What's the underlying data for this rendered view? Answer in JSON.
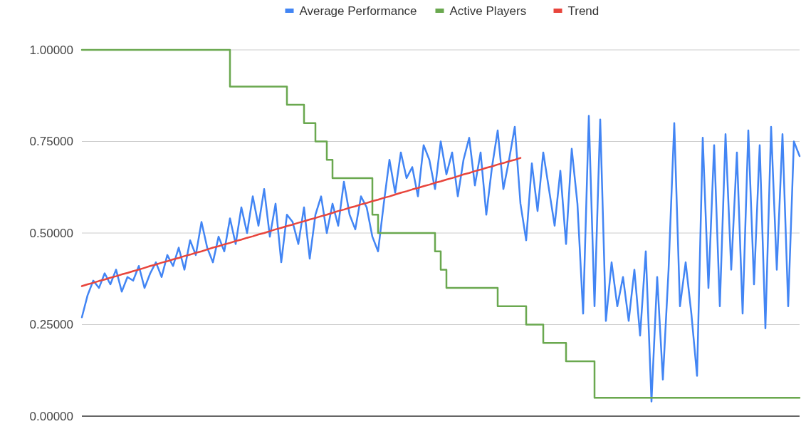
{
  "chart_data": {
    "type": "line",
    "categories": [
      null,
      null,
      null,
      null,
      null,
      null,
      null,
      null,
      null,
      null,
      null,
      null,
      null,
      null,
      null,
      null,
      null,
      null,
      null,
      null,
      null,
      null,
      null,
      null,
      null,
      null,
      null,
      null,
      null,
      null,
      null,
      null,
      null,
      null,
      null,
      null,
      null,
      null,
      null,
      null,
      null,
      null,
      null,
      null,
      null,
      null,
      null,
      null,
      null,
      null,
      null,
      null,
      null,
      null,
      null,
      null,
      null,
      null,
      null,
      null,
      null,
      null,
      null,
      null,
      null,
      null,
      null,
      null,
      null,
      null,
      null,
      null,
      null,
      null,
      null,
      null,
      null,
      null,
      null,
      null,
      null,
      null,
      null,
      null,
      null,
      null,
      null,
      null,
      null,
      null,
      null,
      null,
      null,
      null,
      null,
      null,
      null,
      null,
      null,
      null,
      null,
      null,
      null,
      null,
      null,
      null,
      null,
      null,
      null,
      null,
      null,
      null,
      null,
      null,
      null,
      null,
      null,
      null,
      null,
      null,
      null,
      null,
      null,
      null,
      null,
      null,
      null
    ],
    "series": [
      {
        "name": "Average Performance",
        "color": "#4285f4",
        "values": [
          0.27,
          0.33,
          0.37,
          0.35,
          0.39,
          0.36,
          0.4,
          0.34,
          0.38,
          0.37,
          0.41,
          0.35,
          0.39,
          0.42,
          0.38,
          0.44,
          0.41,
          0.46,
          0.4,
          0.48,
          0.44,
          0.53,
          0.46,
          0.42,
          0.49,
          0.45,
          0.54,
          0.47,
          0.57,
          0.5,
          0.6,
          0.52,
          0.62,
          0.49,
          0.58,
          0.42,
          0.55,
          0.53,
          0.47,
          0.57,
          0.43,
          0.55,
          0.6,
          0.5,
          0.58,
          0.52,
          0.64,
          0.55,
          0.51,
          0.6,
          0.57,
          0.49,
          0.45,
          0.58,
          0.7,
          0.61,
          0.72,
          0.65,
          0.68,
          0.6,
          0.74,
          0.7,
          0.62,
          0.75,
          0.66,
          0.72,
          0.6,
          0.7,
          0.76,
          0.63,
          0.72,
          0.55,
          0.68,
          0.78,
          0.62,
          0.7,
          0.79,
          0.58,
          0.48,
          0.69,
          0.56,
          0.72,
          0.62,
          0.52,
          0.67,
          0.47,
          0.73,
          0.58,
          0.28,
          0.82,
          0.3,
          0.81,
          0.26,
          0.42,
          0.3,
          0.38,
          0.26,
          0.4,
          0.22,
          0.45,
          0.04,
          0.38,
          0.1,
          0.4,
          0.8,
          0.3,
          0.42,
          0.28,
          0.11,
          0.76,
          0.35,
          0.74,
          0.3,
          0.77,
          0.4,
          0.72,
          0.28,
          0.78,
          0.36,
          0.74,
          0.24,
          0.79,
          0.4,
          0.77,
          0.3,
          0.75,
          0.71
        ]
      },
      {
        "name": "Active Players",
        "type": "step",
        "color": "#6aa84f",
        "values": [
          1,
          1,
          1,
          1,
          1,
          1,
          1,
          1,
          1,
          1,
          1,
          1,
          1,
          1,
          1,
          1,
          1,
          1,
          1,
          1,
          1,
          1,
          1,
          1,
          1,
          1,
          0.9,
          0.9,
          0.9,
          0.9,
          0.9,
          0.9,
          0.9,
          0.9,
          0.9,
          0.9,
          0.85,
          0.85,
          0.85,
          0.8,
          0.8,
          0.75,
          0.75,
          0.7,
          0.65,
          0.65,
          0.65,
          0.65,
          0.65,
          0.65,
          0.65,
          0.55,
          0.5,
          0.5,
          0.5,
          0.5,
          0.5,
          0.5,
          0.5,
          0.5,
          0.5,
          0.5,
          0.45,
          0.4,
          0.35,
          0.35,
          0.35,
          0.35,
          0.35,
          0.35,
          0.35,
          0.35,
          0.35,
          0.3,
          0.3,
          0.3,
          0.3,
          0.3,
          0.25,
          0.25,
          0.25,
          0.2,
          0.2,
          0.2,
          0.2,
          0.15,
          0.15,
          0.15,
          0.15,
          0.15,
          0.05,
          0.05,
          0.05,
          0.05,
          0.05,
          0.05,
          0.05,
          0.05,
          0.05,
          0.05,
          0.05,
          0.05,
          0.05,
          0.05,
          0.05,
          0.05,
          0.05,
          0.05,
          0.05,
          0.05,
          0.05,
          0.05,
          0.05,
          0.05,
          0.05,
          0.05,
          0.05,
          0.05,
          0.05,
          0.05,
          0.05,
          0.05,
          0.05,
          0.05,
          0.05,
          0.05,
          0.05
        ]
      },
      {
        "name": "Trend",
        "color": "#e8453c",
        "values": [
          0.355,
          0.36,
          0.364,
          0.369,
          0.373,
          0.378,
          0.382,
          0.387,
          0.391,
          0.396,
          0.4,
          0.405,
          0.41,
          0.414,
          0.419,
          0.423,
          0.428,
          0.432,
          0.437,
          0.441,
          0.446,
          0.45,
          0.455,
          0.46,
          0.464,
          0.469,
          0.473,
          0.478,
          0.482,
          0.487,
          0.491,
          0.496,
          0.5,
          0.505,
          0.51,
          0.514,
          0.519,
          0.523,
          0.528,
          0.532,
          0.537,
          0.541,
          0.546,
          0.55,
          0.555,
          0.56,
          0.564,
          0.569,
          0.573,
          0.578,
          0.582,
          0.587,
          0.591,
          0.596,
          0.6,
          0.605,
          0.61,
          0.614,
          0.619,
          0.623,
          0.628,
          0.632,
          0.637,
          0.641,
          0.646,
          0.65,
          0.655,
          0.66,
          0.664,
          0.669,
          0.673,
          0.678,
          0.682,
          0.687,
          0.691,
          0.696,
          0.7,
          0.705,
          null,
          null,
          null,
          null,
          null,
          null,
          null,
          null,
          null,
          null,
          null,
          null,
          null,
          null,
          null,
          null,
          null,
          null,
          null,
          null,
          null,
          null,
          null,
          null,
          null,
          null,
          null,
          null,
          null,
          null,
          null,
          null,
          null,
          null,
          null,
          null,
          null,
          null,
          null,
          null,
          null,
          null,
          null,
          null,
          null,
          null,
          null,
          null,
          null
        ]
      }
    ],
    "ylim": [
      0,
      1
    ],
    "yticks": [
      {
        "value": 0,
        "label": "0.00000"
      },
      {
        "value": 0.25,
        "label": "0.25000"
      },
      {
        "value": 0.5,
        "label": "0.50000"
      },
      {
        "value": 0.75,
        "label": "0.75000"
      },
      {
        "value": 1,
        "label": "1.00000"
      }
    ],
    "grid": "y",
    "legend": "top",
    "tick_labels": "y"
  }
}
